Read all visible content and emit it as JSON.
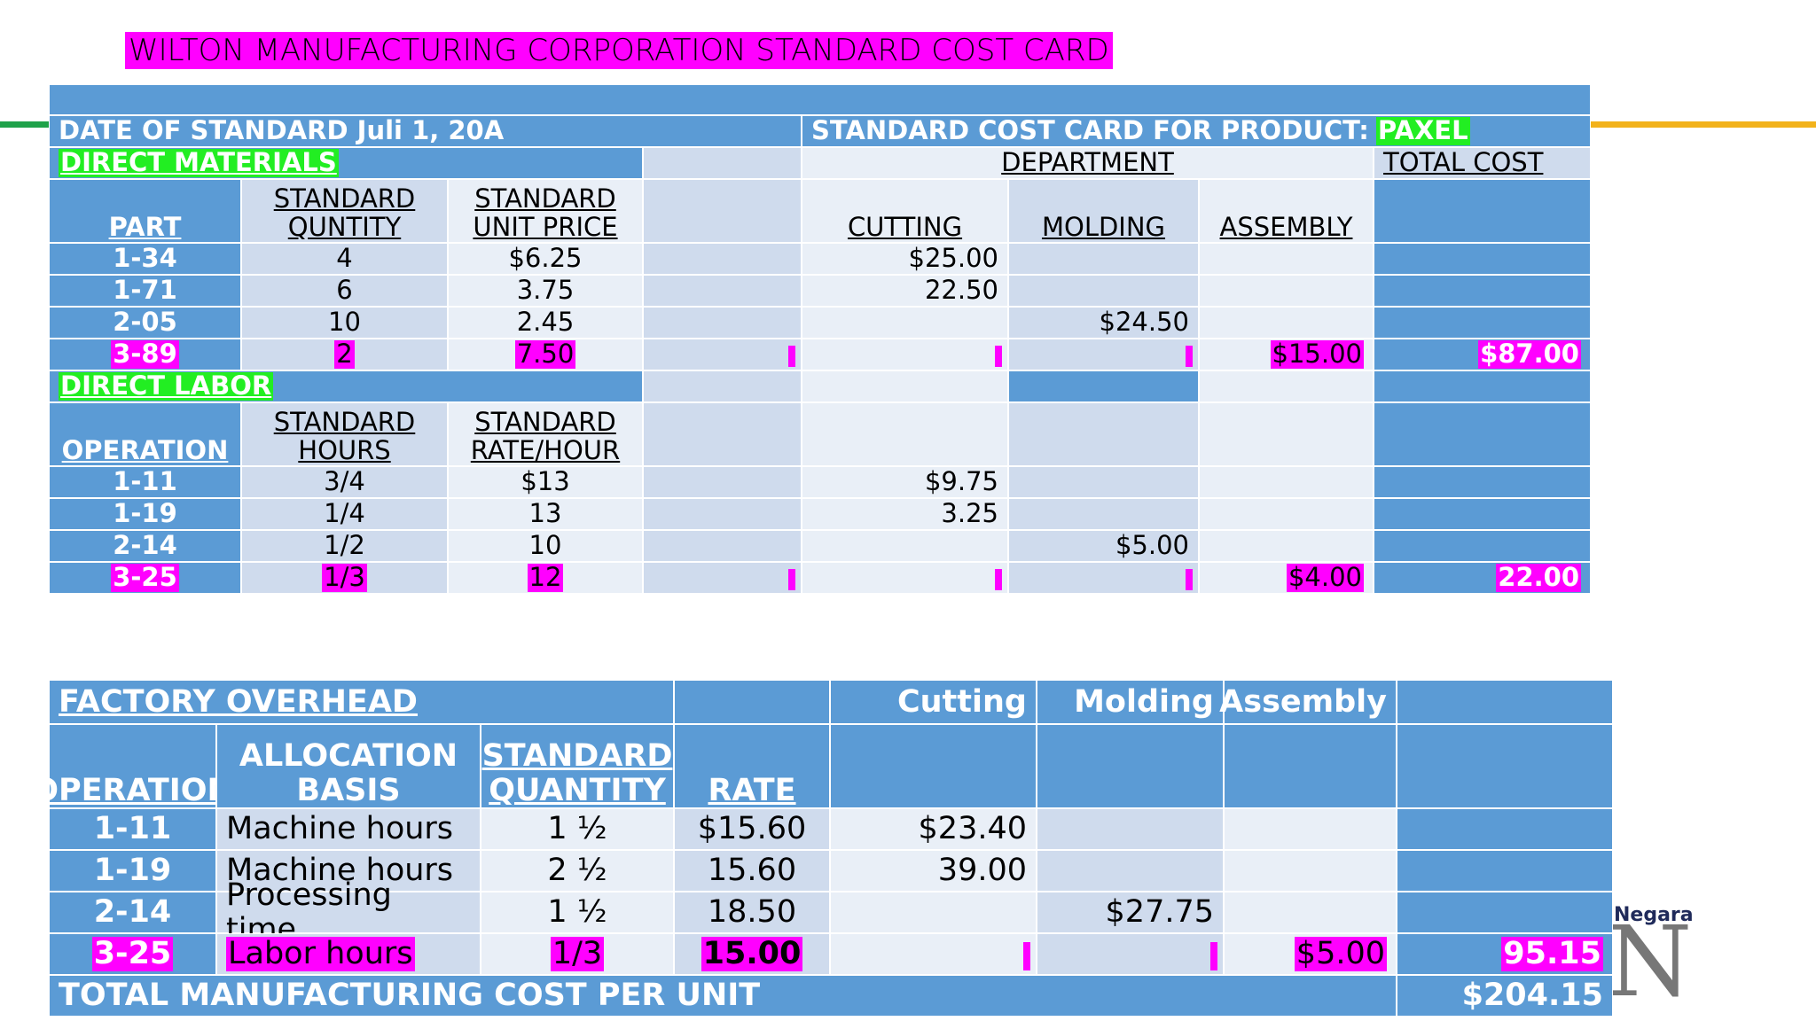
{
  "title": "WILTON MANUFACTURING CORPORATION STANDARD COST CARD",
  "cost_card": {
    "rows": [
      [
        "DATE OF STANDARD Juli 1, 20A",
        [
          "STANDARD COST CARD FOR PRODUCT:",
          "PAXEL"
        ]
      ],
      [
        "DIRECT MATERIALS",
        null,
        "DEPARTMENT",
        "TOTAL COST"
      ],
      [
        "PART",
        "STANDARD\nQUNTITY",
        "STANDARD\nUNIT PRICE",
        null,
        "CUTTING",
        "MOLDING",
        "ASSEMBLY",
        null
      ],
      [
        "1-34",
        "4",
        "$6.25",
        null,
        "$25.00",
        null,
        null,
        null
      ],
      [
        "1-71",
        "6",
        "3.75",
        null,
        "22.50",
        null,
        null,
        null
      ],
      [
        "2-05",
        "10",
        "2.45",
        null,
        null,
        "$24.50",
        null,
        null
      ],
      [
        "3-89",
        "2",
        "7.50",
        null,
        null,
        null,
        "$15.00",
        "$87.00"
      ],
      [
        "DIRECT LABOR",
        null,
        null,
        null,
        null,
        null
      ],
      [
        "OPERATION",
        "STANDARD\nHOURS",
        "STANDARD\nRATE/HOUR",
        null,
        null,
        null,
        null,
        null
      ],
      [
        "1-11",
        "3/4",
        "$13",
        null,
        "$9.75",
        null,
        null,
        null
      ],
      [
        "1-19",
        "1/4",
        "13",
        null,
        "3.25",
        null,
        null,
        null
      ],
      [
        "2-14",
        "1/2",
        "10",
        null,
        null,
        "$5.00",
        null,
        null
      ],
      [
        "3-25",
        "1/3",
        "12",
        null,
        null,
        null,
        "$4.00",
        "22.00"
      ]
    ]
  },
  "overhead": {
    "rows": [
      [
        "FACTORY OVERHEAD",
        null,
        "Cutting",
        "Molding",
        "Assembly",
        null
      ],
      [
        "OPERATION",
        "ALLOCATION\nBASIS",
        "STANDARD\nQUANTITY",
        "RATE",
        null,
        null,
        null,
        null
      ],
      [
        "1-11",
        "Machine hours",
        "1 ½",
        "$15.60",
        "$23.40",
        null,
        null,
        null
      ],
      [
        "1-19",
        "Machine hours",
        "2 ½",
        "15.60",
        "39.00",
        null,
        null,
        null
      ],
      [
        "2-14",
        "Processing time",
        "1 ½",
        "18.50",
        null,
        "$27.75",
        null,
        null
      ],
      [
        "3-25",
        "Labor hours",
        "1/3",
        "15.00",
        null,
        null,
        "$5.00",
        "95.15"
      ],
      [
        "TOTAL MANUFACTURING COST PER UNIT",
        "$204.15"
      ]
    ]
  },
  "logo": {
    "text": "Negara",
    "letter": "N"
  }
}
